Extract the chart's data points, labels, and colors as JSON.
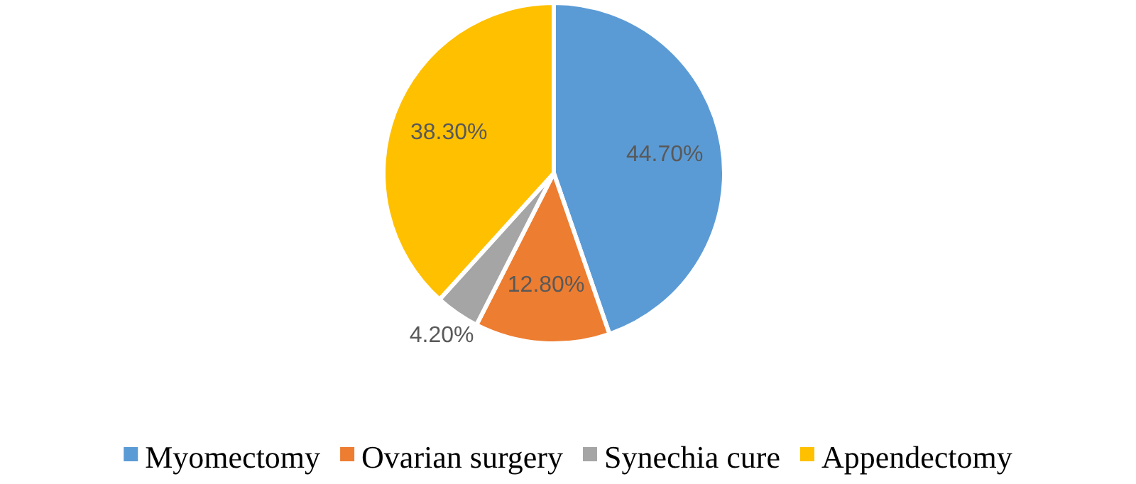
{
  "chart_data": {
    "type": "pie",
    "categories": [
      "Myomectomy",
      "Ovarian surgery",
      "Synechia cure",
      "Appendectomy"
    ],
    "values": [
      44.7,
      12.8,
      4.2,
      38.3
    ],
    "value_labels": [
      "44.70%",
      "12.80%",
      "4.20%",
      "38.30%"
    ],
    "colors": [
      "#5b9bd5",
      "#ed7d31",
      "#a5a5a5",
      "#ffc000"
    ],
    "legend": "bottom"
  }
}
